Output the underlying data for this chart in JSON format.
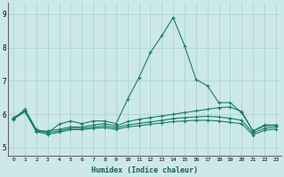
{
  "xlabel": "Humidex (Indice chaleur)",
  "background_color": "#cce8e8",
  "grid_color": "#aacfcf",
  "line_color": "#1a7a6e",
  "xlim": [
    -0.5,
    23.5
  ],
  "ylim": [
    4.75,
    9.35
  ],
  "xtick_labels": [
    "0",
    "1",
    "2",
    "3",
    "4",
    "5",
    "6",
    "7",
    "8",
    "9",
    "10",
    "11",
    "12",
    "13",
    "14",
    "15",
    "16",
    "17",
    "18",
    "19",
    "20",
    "21",
    "22",
    "23"
  ],
  "ytick_values": [
    5,
    6,
    7,
    8,
    9
  ],
  "ytick_labels": [
    "5",
    "6",
    "7",
    "8",
    "9"
  ],
  "series": [
    {
      "x": [
        0,
        1,
        2,
        3,
        4,
        5,
        6,
        7,
        8,
        9,
        10,
        11,
        12,
        13,
        14,
        15,
        16,
        17,
        18,
        19,
        20,
        21,
        22,
        23
      ],
      "y": [
        5.85,
        6.15,
        5.55,
        5.45,
        5.7,
        5.8,
        5.72,
        5.8,
        5.8,
        5.72,
        6.45,
        7.1,
        7.85,
        8.35,
        8.9,
        8.05,
        7.05,
        6.85,
        6.35,
        6.35,
        6.05,
        5.5,
        5.68,
        5.68
      ]
    },
    {
      "x": [
        0,
        1,
        2,
        3,
        4,
        5,
        6,
        7,
        8,
        9,
        10,
        11,
        12,
        13,
        14,
        15,
        16,
        17,
        18,
        19,
        20,
        21,
        22,
        23
      ],
      "y": [
        5.9,
        6.1,
        5.5,
        5.5,
        5.55,
        5.62,
        5.62,
        5.68,
        5.72,
        5.65,
        5.78,
        5.85,
        5.9,
        5.95,
        6.0,
        6.05,
        6.1,
        6.15,
        6.2,
        6.22,
        6.08,
        5.5,
        5.65,
        5.67
      ]
    },
    {
      "x": [
        0,
        1,
        2,
        3,
        4,
        5,
        6,
        7,
        8,
        9,
        10,
        11,
        12,
        13,
        14,
        15,
        16,
        17,
        18,
        19,
        20,
        21,
        22,
        23
      ],
      "y": [
        5.88,
        6.1,
        5.5,
        5.45,
        5.5,
        5.58,
        5.58,
        5.62,
        5.65,
        5.6,
        5.68,
        5.73,
        5.77,
        5.82,
        5.87,
        5.9,
        5.92,
        5.94,
        5.92,
        5.88,
        5.82,
        5.44,
        5.58,
        5.62
      ]
    },
    {
      "x": [
        0,
        1,
        2,
        3,
        4,
        5,
        6,
        7,
        8,
        9,
        10,
        11,
        12,
        13,
        14,
        15,
        16,
        17,
        18,
        19,
        20,
        21,
        22,
        23
      ],
      "y": [
        5.85,
        6.08,
        5.48,
        5.4,
        5.46,
        5.54,
        5.54,
        5.58,
        5.6,
        5.55,
        5.62,
        5.66,
        5.7,
        5.74,
        5.78,
        5.8,
        5.82,
        5.82,
        5.8,
        5.76,
        5.72,
        5.38,
        5.52,
        5.56
      ]
    }
  ]
}
